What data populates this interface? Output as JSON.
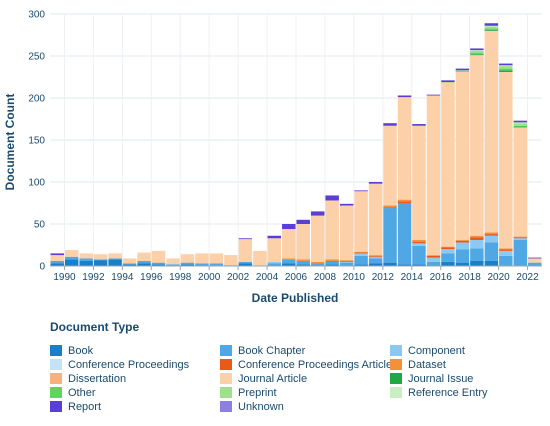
{
  "chart_data": {
    "type": "bar",
    "stacked": true,
    "xlabel": "Date Published",
    "ylabel": "Document Count",
    "ylim": [
      0,
      300
    ],
    "yticks": [
      0,
      50,
      100,
      150,
      200,
      250,
      300
    ],
    "xtick_labels": [
      "1990",
      "1992",
      "1994",
      "1996",
      "1998",
      "2000",
      "2002",
      "2004",
      "2006",
      "2008",
      "2010",
      "2012",
      "2014",
      "2016",
      "2018",
      "2020",
      "2022"
    ],
    "grid": true,
    "legend_position": "bottom",
    "legend_title": "Document Type",
    "categories": [
      "1989",
      "1990",
      "1991",
      "1992",
      "1993",
      "1994",
      "1995",
      "1996",
      "1997",
      "1998",
      "1999",
      "2000",
      "2001",
      "2002",
      "2003",
      "2004",
      "2005",
      "2006",
      "2007",
      "2008",
      "2009",
      "2010",
      "2011",
      "2012",
      "2013",
      "2014",
      "2015",
      "2016",
      "2017",
      "2018",
      "2019",
      "2020",
      "2021",
      "2022"
    ],
    "series": [
      {
        "name": "Book",
        "color": "#1a7fc9",
        "values": [
          3,
          8,
          6,
          7,
          8,
          2,
          3,
          2,
          0,
          2,
          1,
          1,
          0,
          3,
          0,
          1,
          3,
          2,
          1,
          2,
          1,
          2,
          3,
          4,
          2,
          2,
          0,
          5,
          4,
          6,
          6,
          0,
          1,
          1
        ]
      },
      {
        "name": "Book Chapter",
        "color": "#4fa8e4",
        "values": [
          3,
          3,
          3,
          1,
          1,
          1,
          3,
          2,
          2,
          2,
          2,
          2,
          1,
          2,
          0,
          2,
          5,
          4,
          2,
          3,
          3,
          10,
          6,
          65,
          73,
          22,
          5,
          10,
          16,
          15,
          22,
          12,
          30,
          3
        ]
      },
      {
        "name": "Component",
        "color": "#8cc8f0",
        "values": [
          0,
          0,
          0,
          0,
          0,
          0,
          0,
          0,
          0,
          0,
          0,
          0,
          0,
          0,
          0,
          2,
          0,
          0,
          0,
          0,
          1,
          3,
          2,
          0,
          0,
          3,
          5,
          5,
          8,
          10,
          8,
          6,
          2,
          0
        ]
      },
      {
        "name": "Conference Proceedings",
        "color": "#c5e3f7",
        "values": [
          0,
          0,
          0,
          0,
          0,
          0,
          0,
          0,
          0,
          0,
          0,
          0,
          0,
          0,
          0,
          0,
          0,
          0,
          0,
          0,
          0,
          0,
          0,
          0,
          0,
          0,
          0,
          0,
          0,
          0,
          0,
          0,
          0,
          0
        ]
      },
      {
        "name": "Conference Proceedings Article",
        "color": "#e8591b",
        "values": [
          0,
          0,
          0,
          0,
          0,
          0,
          0,
          0,
          0,
          0,
          0,
          0,
          0,
          0,
          0,
          0,
          0,
          0,
          0,
          1,
          1,
          1,
          1,
          1,
          2,
          2,
          2,
          2,
          2,
          3,
          2,
          2,
          1,
          0
        ]
      },
      {
        "name": "Dataset",
        "color": "#f2903c",
        "values": [
          0,
          0,
          0,
          0,
          0,
          0,
          0,
          0,
          0,
          0,
          0,
          0,
          0,
          0,
          0,
          0,
          1,
          2,
          2,
          2,
          1,
          1,
          1,
          2,
          2,
          2,
          1,
          1,
          1,
          2,
          2,
          1,
          1,
          0
        ]
      },
      {
        "name": "Dissertation",
        "color": "#f7b07e",
        "values": [
          0,
          0,
          0,
          0,
          0,
          0,
          0,
          0,
          0,
          0,
          0,
          0,
          0,
          0,
          0,
          0,
          0,
          0,
          0,
          0,
          0,
          0,
          0,
          0,
          0,
          0,
          0,
          0,
          0,
          0,
          0,
          0,
          0,
          0
        ]
      },
      {
        "name": "Journal Article",
        "color": "#fcd0a8",
        "values": [
          7,
          8,
          6,
          6,
          6,
          6,
          10,
          14,
          7,
          10,
          12,
          12,
          12,
          27,
          18,
          28,
          35,
          42,
          55,
          70,
          65,
          72,
          85,
          95,
          122,
          136,
          190,
          195,
          200,
          215,
          240,
          210,
          130,
          5
        ]
      },
      {
        "name": "Journal Issue",
        "color": "#1fa844",
        "values": [
          0,
          0,
          0,
          0,
          0,
          0,
          0,
          0,
          0,
          0,
          0,
          0,
          0,
          0,
          0,
          0,
          0,
          0,
          0,
          0,
          0,
          0,
          0,
          0,
          0,
          0,
          0,
          0,
          0,
          1,
          1,
          2,
          1,
          0
        ]
      },
      {
        "name": "Other",
        "color": "#5fd45f",
        "values": [
          0,
          0,
          0,
          0,
          0,
          0,
          0,
          0,
          0,
          0,
          0,
          0,
          0,
          0,
          0,
          0,
          0,
          0,
          0,
          0,
          0,
          0,
          0,
          0,
          0,
          0,
          0,
          0,
          1,
          2,
          2,
          2,
          1,
          0
        ]
      },
      {
        "name": "Preprint",
        "color": "#9fe08a",
        "values": [
          0,
          0,
          0,
          0,
          0,
          0,
          0,
          0,
          0,
          0,
          0,
          0,
          0,
          0,
          0,
          0,
          0,
          0,
          0,
          0,
          0,
          0,
          0,
          0,
          0,
          0,
          0,
          1,
          1,
          2,
          2,
          3,
          3,
          0
        ]
      },
      {
        "name": "Reference Entry",
        "color": "#c7efbf",
        "values": [
          0,
          0,
          0,
          0,
          0,
          0,
          0,
          0,
          0,
          0,
          0,
          0,
          0,
          0,
          0,
          0,
          0,
          0,
          0,
          0,
          0,
          0,
          0,
          0,
          0,
          0,
          0,
          0,
          0,
          1,
          1,
          1,
          1,
          0
        ]
      },
      {
        "name": "Report",
        "color": "#5a3fd6",
        "values": [
          2,
          0,
          0,
          0,
          0,
          0,
          0,
          0,
          0,
          0,
          0,
          0,
          0,
          1,
          0,
          3,
          6,
          5,
          5,
          6,
          2,
          1,
          2,
          3,
          2,
          2,
          1,
          2,
          2,
          2,
          3,
          2,
          2,
          1
        ]
      },
      {
        "name": "Unknown",
        "color": "#8b7fe0",
        "values": [
          0,
          0,
          0,
          0,
          0,
          0,
          0,
          0,
          0,
          0,
          0,
          0,
          0,
          0,
          0,
          0,
          0,
          0,
          0,
          0,
          0,
          0,
          0,
          0,
          0,
          0,
          0,
          0,
          0,
          0,
          0,
          0,
          0,
          0
        ]
      }
    ]
  },
  "legend": {
    "title": "Document Type",
    "items": [
      {
        "label": "Book",
        "color": "#1a7fc9",
        "icon": "book-icon"
      },
      {
        "label": "Book Chapter",
        "color": "#4fa8e4",
        "icon": "book-chapter-icon"
      },
      {
        "label": "Component",
        "color": "#8cc8f0",
        "icon": "component-icon"
      },
      {
        "label": "Conference Proceedings",
        "color": "#c5e3f7",
        "icon": "conference-proceedings-icon"
      },
      {
        "label": "Conference Proceedings Article",
        "color": "#e8591b",
        "icon": "conference-article-icon"
      },
      {
        "label": "Dataset",
        "color": "#f2903c",
        "icon": "dataset-icon"
      },
      {
        "label": "Dissertation",
        "color": "#f7b07e",
        "icon": "dissertation-icon"
      },
      {
        "label": "Journal Article",
        "color": "#fcd0a8",
        "icon": "journal-article-icon"
      },
      {
        "label": "Journal Issue",
        "color": "#1fa844",
        "icon": "journal-issue-icon"
      },
      {
        "label": "Other",
        "color": "#5fd45f",
        "icon": "other-icon"
      },
      {
        "label": "Preprint",
        "color": "#9fe08a",
        "icon": "preprint-icon"
      },
      {
        "label": "Reference Entry",
        "color": "#c7efbf",
        "icon": "reference-entry-icon"
      },
      {
        "label": "Report",
        "color": "#5a3fd6",
        "icon": "report-icon"
      },
      {
        "label": "Unknown",
        "color": "#8b7fe0",
        "icon": "unknown-icon"
      }
    ]
  }
}
